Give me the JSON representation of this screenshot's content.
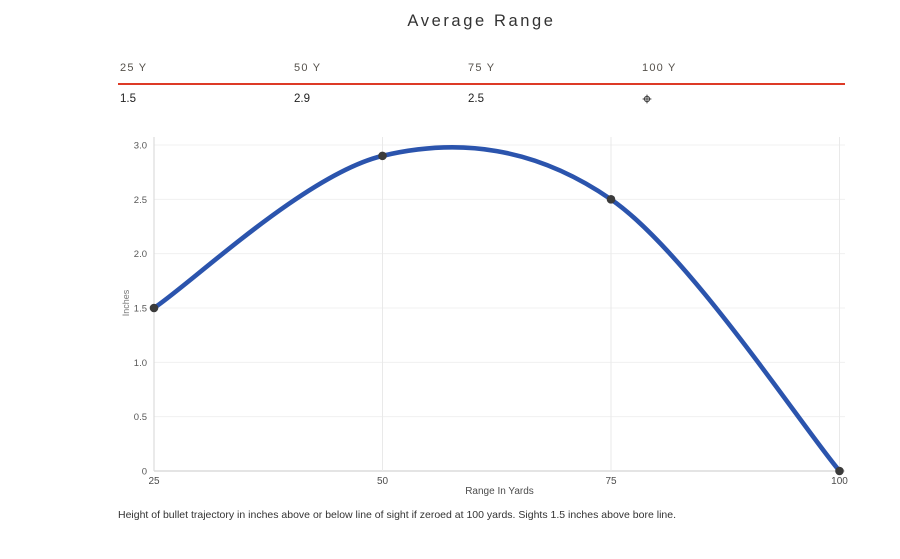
{
  "chart_data": {
    "type": "line",
    "title": "Average Range",
    "xlabel": "Range In Yards",
    "ylabel": "Inches",
    "x": [
      25,
      50,
      75,
      100
    ],
    "y": [
      1.5,
      2.9,
      2.5,
      0
    ],
    "x_tick_labels": [
      "25",
      "50",
      "75",
      "100"
    ],
    "y_ticks": [
      0,
      0.5,
      1,
      1.5,
      2,
      2.5,
      3
    ],
    "xlim": [
      25,
      100
    ],
    "ylim": [
      0,
      3
    ],
    "curve": "smooth",
    "grid": true,
    "legend": "none",
    "line_color": "#2b54ad",
    "marker_color": "#3b3b3b"
  },
  "summary_table": {
    "divider_color": "#dd3a26",
    "columns": [
      {
        "label": "25 Y",
        "value": "1.5",
        "icon": null
      },
      {
        "label": "50 Y",
        "value": "2.9",
        "icon": null
      },
      {
        "label": "75 Y",
        "value": "2.5",
        "icon": null
      },
      {
        "label": "100 Y",
        "value": "",
        "icon": "crosshair-icon"
      }
    ]
  },
  "footer": {
    "note": "Height of bullet trajectory in inches above or below line of sight if zeroed at 100 yards. Sights 1.5 inches above bore line."
  }
}
